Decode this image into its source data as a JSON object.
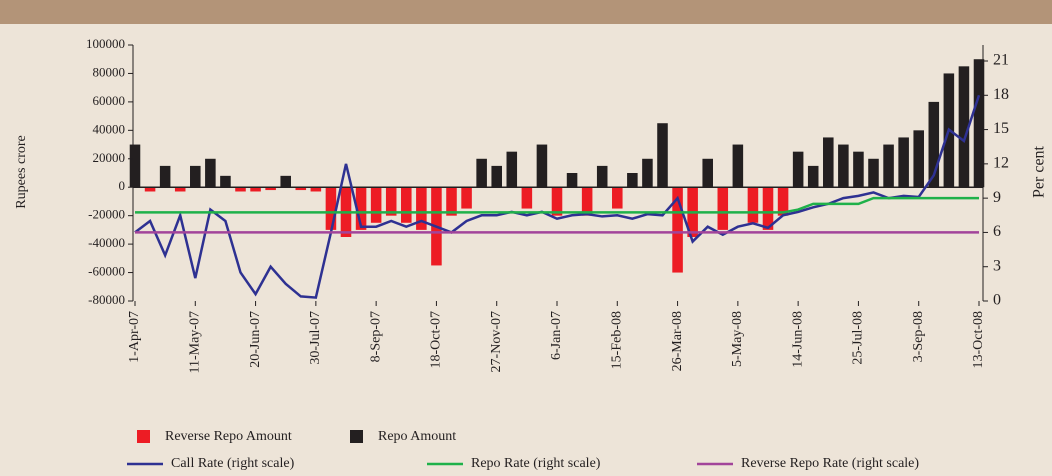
{
  "chart_data": {
    "type": "bar-line",
    "ylabel": "Rupees crore",
    "y2label": "Per cent",
    "categories": [
      "1-Apr-07",
      null,
      null,
      null,
      "11-May-07",
      null,
      null,
      null,
      "20-Jun-07",
      null,
      null,
      null,
      "30-Jul-07",
      null,
      null,
      null,
      "8-Sep-07",
      null,
      null,
      null,
      "18-Oct-07",
      null,
      null,
      null,
      "27-Nov-07",
      null,
      null,
      null,
      "6-Jan-07",
      null,
      null,
      null,
      "15-Feb-08",
      null,
      null,
      null,
      "26-Mar-08",
      null,
      null,
      null,
      "5-May-08",
      null,
      null,
      null,
      "14-Jun-08",
      null,
      null,
      null,
      "25-Jul-08",
      null,
      null,
      null,
      "3-Sep-08",
      null,
      null,
      null,
      "13-Oct-08"
    ],
    "ylim": [
      -80000,
      100000
    ],
    "yticks": [
      -80000,
      -60000,
      -40000,
      -20000,
      0,
      20000,
      40000,
      60000,
      80000,
      100000
    ],
    "y2lim": [
      0,
      22.4
    ],
    "y2ticks": [
      0,
      3,
      6,
      9,
      12,
      15,
      18,
      21
    ],
    "legend": "bottom",
    "grid": false,
    "series": [
      {
        "name": "Reverse Repo  Amount",
        "kind": "bar",
        "color": "#ed1c24",
        "values": [
          null,
          -3000,
          null,
          -3000,
          null,
          null,
          null,
          -3000,
          -3000,
          -2000,
          null,
          -2000,
          -3000,
          -30000,
          -35000,
          -30000,
          -25000,
          -20000,
          -25000,
          -30000,
          -55000,
          -20000,
          -15000,
          null,
          null,
          null,
          -15000,
          null,
          -20000,
          null,
          -20000,
          null,
          -15000,
          null,
          null,
          null,
          -60000,
          -35000,
          null,
          -30000,
          null,
          -25000,
          -30000,
          -20000,
          null,
          null,
          null,
          null,
          null,
          null,
          null,
          null,
          null,
          null,
          null,
          null,
          null
        ]
      },
      {
        "name": "Repo Amount",
        "kind": "bar",
        "color": "#231f20",
        "values": [
          30000,
          null,
          15000,
          null,
          15000,
          20000,
          8000,
          null,
          null,
          null,
          8000,
          null,
          null,
          null,
          null,
          null,
          null,
          null,
          null,
          null,
          null,
          null,
          null,
          20000,
          15000,
          25000,
          null,
          30000,
          null,
          10000,
          null,
          15000,
          null,
          10000,
          20000,
          45000,
          null,
          null,
          20000,
          null,
          30000,
          null,
          null,
          null,
          25000,
          15000,
          35000,
          30000,
          25000,
          20000,
          30000,
          35000,
          40000,
          60000,
          80000,
          85000,
          90000
        ]
      },
      {
        "name": "Call Rate (right scale)",
        "kind": "line",
        "axis": "y2",
        "color": "#2e3192",
        "values": [
          6,
          7,
          4,
          7.5,
          2,
          8,
          7,
          2.5,
          0.6,
          3,
          1.5,
          0.4,
          0.3,
          6,
          12,
          6.5,
          6.5,
          7,
          6.5,
          7,
          6.5,
          6,
          7,
          7.5,
          7.5,
          7.8,
          7.5,
          7.8,
          7.2,
          7.5,
          7.6,
          7.4,
          7.5,
          7.2,
          7.6,
          7.5,
          9,
          5.2,
          6.5,
          5.8,
          6.5,
          6.8,
          6.4,
          7.5,
          7.8,
          8.2,
          8.5,
          9,
          9.2,
          9.5,
          9,
          9.2,
          9.1,
          11,
          15,
          14,
          18
        ]
      },
      {
        "name": "Repo Rate (right scale)",
        "kind": "line",
        "axis": "y2",
        "color": "#1fb14a",
        "values": [
          7.75,
          7.75,
          7.75,
          7.75,
          7.75,
          7.75,
          7.75,
          7.75,
          7.75,
          7.75,
          7.75,
          7.75,
          7.75,
          7.75,
          7.75,
          7.75,
          7.75,
          7.75,
          7.75,
          7.75,
          7.75,
          7.75,
          7.75,
          7.75,
          7.75,
          7.75,
          7.75,
          7.75,
          7.75,
          7.75,
          7.75,
          7.75,
          7.75,
          7.75,
          7.75,
          7.75,
          7.75,
          7.75,
          7.75,
          7.75,
          7.75,
          7.75,
          7.75,
          7.75,
          8,
          8.5,
          8.5,
          8.5,
          8.5,
          9,
          9,
          9,
          9,
          9,
          9,
          9,
          9
        ]
      },
      {
        "name": "Reverse Repo Rate (right scale)",
        "kind": "line",
        "axis": "y2",
        "color": "#a2449a",
        "values": [
          6,
          6,
          6,
          6,
          6,
          6,
          6,
          6,
          6,
          6,
          6,
          6,
          6,
          6,
          6,
          6,
          6,
          6,
          6,
          6,
          6,
          6,
          6,
          6,
          6,
          6,
          6,
          6,
          6,
          6,
          6,
          6,
          6,
          6,
          6,
          6,
          6,
          6,
          6,
          6,
          6,
          6,
          6,
          6,
          6,
          6,
          6,
          6,
          6,
          6,
          6,
          6,
          6,
          6,
          6,
          6,
          6
        ]
      }
    ]
  }
}
